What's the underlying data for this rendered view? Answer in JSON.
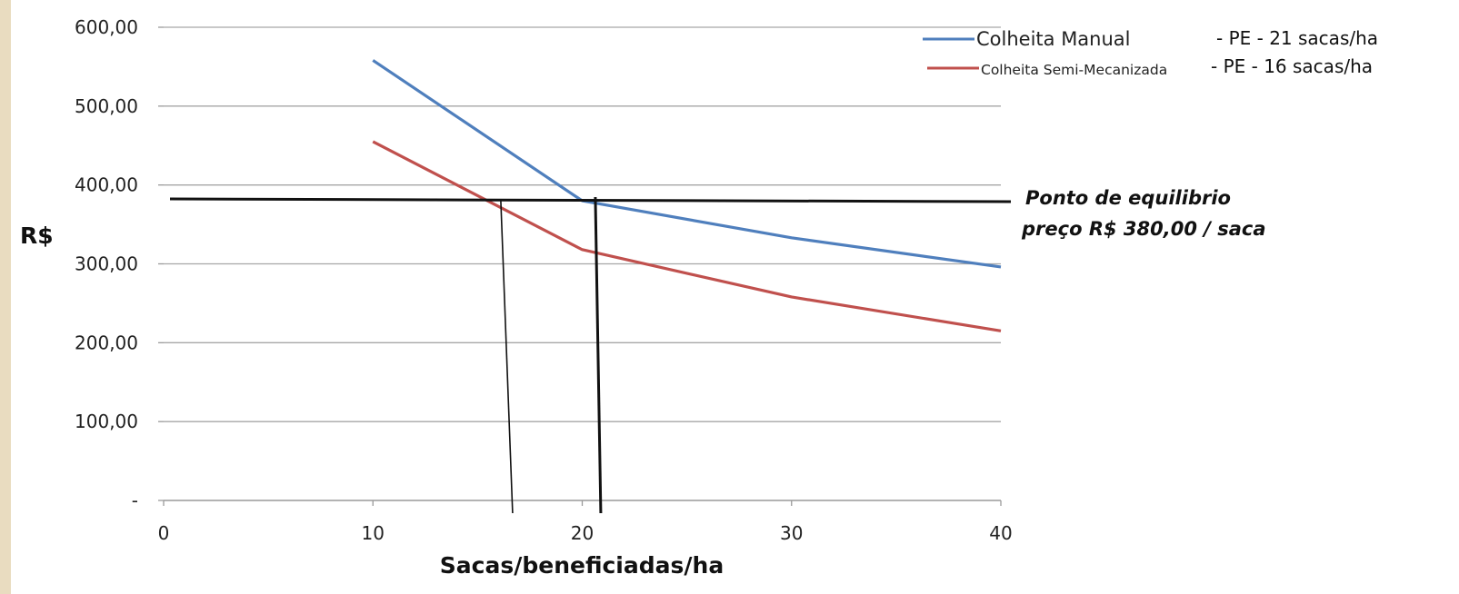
{
  "chart_data": {
    "type": "line",
    "title": "",
    "xlabel": "Sacas/beneficiadas/ha",
    "ylabel": "R$",
    "xlim": [
      0,
      40
    ],
    "ylim": [
      0,
      600
    ],
    "x_ticks": [
      "0",
      "10",
      "20",
      "30",
      "40"
    ],
    "y_ticks": [
      "-",
      "100,00",
      "200,00",
      "300,00",
      "400,00",
      "500,00",
      "600,00"
    ],
    "grid": true,
    "x": [
      10,
      20,
      30,
      40
    ],
    "series": [
      {
        "name": "Colheita Manual",
        "color": "#4f7fbd",
        "values": [
          558,
          380,
          333,
          296
        ],
        "pe_note": "- PE - 21 sacas/ha"
      },
      {
        "name": "Colheita Semi-Mecanizada",
        "color": "#c0504d",
        "values": [
          455,
          318,
          258,
          215
        ],
        "pe_note": "- PE - 16 sacas/ha"
      }
    ],
    "equilibrium_price": 380,
    "equilibrium_points": [
      16.5,
      20.8
    ],
    "annotation": {
      "line1": "Ponto de equilibrio",
      "line2": "preço R$ 380,00 / saca"
    },
    "legend_position": "top-right"
  }
}
